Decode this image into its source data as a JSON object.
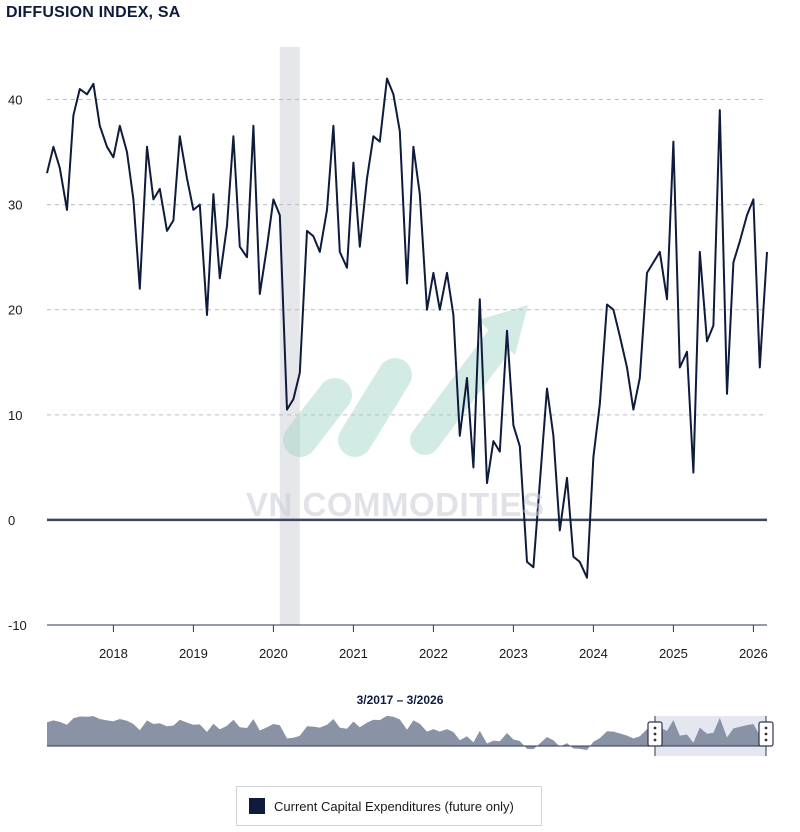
{
  "watermark": "VN COMMODITIES",
  "navigator": {
    "range_label": "3/2017 – 3/2026"
  },
  "chart_data": {
    "type": "line",
    "title": "DIFFUSION INDEX, SA",
    "ylim": [
      -10,
      45
    ],
    "yticks": [
      -10,
      0,
      10,
      20,
      30,
      40
    ],
    "xlim": [
      2017.17,
      2026.17
    ],
    "xticks": [
      "2018",
      "2019",
      "2020",
      "2021",
      "2022",
      "2023",
      "2024",
      "2025",
      "2026"
    ],
    "grid": true,
    "legend": "bottom-center",
    "shaded_region": [
      2020.08,
      2020.33
    ],
    "series": [
      {
        "name": "Current Capital Expenditures (future only)",
        "color": "#0f1b3d",
        "x": [
          2017.17,
          2017.25,
          2017.33,
          2017.42,
          2017.5,
          2017.58,
          2017.67,
          2017.75,
          2017.83,
          2017.92,
          2018.0,
          2018.08,
          2018.17,
          2018.25,
          2018.33,
          2018.42,
          2018.5,
          2018.58,
          2018.67,
          2018.75,
          2018.83,
          2018.92,
          2019.0,
          2019.08,
          2019.17,
          2019.25,
          2019.33,
          2019.42,
          2019.5,
          2019.58,
          2019.67,
          2019.75,
          2019.83,
          2019.92,
          2020.0,
          2020.08,
          2020.17,
          2020.25,
          2020.33,
          2020.42,
          2020.5,
          2020.58,
          2020.67,
          2020.75,
          2020.83,
          2020.92,
          2021.0,
          2021.08,
          2021.17,
          2021.25,
          2021.33,
          2021.42,
          2021.5,
          2021.58,
          2021.67,
          2021.75,
          2021.83,
          2021.92,
          2022.0,
          2022.08,
          2022.17,
          2022.25,
          2022.33,
          2022.42,
          2022.5,
          2022.58,
          2022.67,
          2022.75,
          2022.83,
          2022.92,
          2023.0,
          2023.08,
          2023.17,
          2023.25,
          2023.33,
          2023.42,
          2023.5,
          2023.58,
          2023.67,
          2023.75,
          2023.83,
          2023.92,
          2024.0,
          2024.08,
          2024.17,
          2024.25,
          2024.33,
          2024.42,
          2024.5,
          2024.58,
          2024.67,
          2024.75,
          2024.83,
          2024.92,
          2025.0,
          2025.08,
          2025.17,
          2025.25,
          2025.33,
          2025.42,
          2025.5,
          2025.58,
          2025.67,
          2025.75,
          2025.83,
          2025.92,
          2026.0,
          2026.08,
          2026.17
        ],
        "y": [
          33.0,
          35.5,
          33.5,
          29.5,
          38.5,
          41.0,
          40.5,
          41.5,
          37.5,
          35.5,
          34.5,
          37.5,
          35.0,
          30.5,
          22.0,
          35.5,
          30.5,
          31.5,
          27.5,
          28.5,
          36.5,
          32.5,
          29.5,
          30.0,
          19.5,
          31.0,
          23.0,
          28.0,
          36.5,
          26.0,
          25.0,
          37.5,
          21.5,
          26.0,
          30.5,
          29.0,
          10.5,
          11.5,
          14.0,
          27.5,
          27.0,
          25.5,
          29.5,
          37.5,
          25.5,
          24.0,
          34.0,
          26.0,
          32.5,
          36.5,
          36.0,
          42.0,
          40.5,
          37.0,
          22.5,
          35.5,
          31.0,
          20.0,
          23.5,
          20.0,
          23.5,
          19.5,
          8.0,
          13.5,
          5.0,
          21.0,
          3.5,
          7.5,
          6.5,
          18.0,
          9.0,
          7.0,
          -4.0,
          -4.5,
          3.5,
          12.5,
          8.0,
          -1.0,
          4.0,
          -3.5,
          -4.0,
          -5.5,
          6.0,
          11.0,
          20.5,
          20.0,
          17.5,
          14.5,
          10.5,
          13.5,
          23.5,
          24.5,
          25.5,
          21.0,
          36.0,
          14.5,
          16.0,
          4.5,
          25.5,
          17.0,
          18.5,
          39.0,
          12.0,
          24.5,
          26.5,
          29.0,
          30.5,
          14.5,
          25.5
        ]
      }
    ]
  }
}
